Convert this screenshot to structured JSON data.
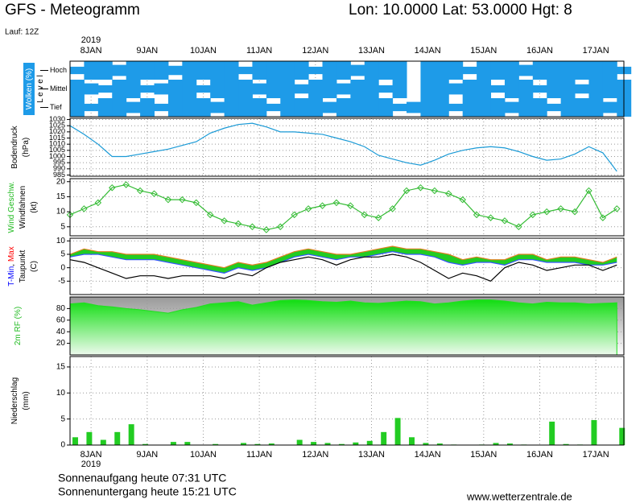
{
  "header": {
    "title": "GFS - Meteogramm",
    "location": "Lon: 10.0000 Lat: 53.0000 Hgt: 8",
    "run": "Lauf: 12Z",
    "year": "2019"
  },
  "footer": {
    "sunrise": "Sonnenaufgang heute 07:31 UTC",
    "sunset": "Sonnenuntergang heute 15:21 UTC",
    "source": "www.wetterzentrale.de"
  },
  "chart_data": {
    "type": "meteogram",
    "x": [
      0,
      6,
      12,
      18,
      24,
      30,
      36,
      42,
      48,
      54,
      60,
      66,
      72,
      78,
      84,
      90,
      96,
      102,
      108,
      114,
      120,
      126,
      132,
      138,
      144,
      150,
      156,
      162,
      168,
      174,
      180,
      186,
      192,
      198,
      204,
      210,
      216,
      222,
      228,
      234
    ],
    "xlim": [
      0,
      237
    ],
    "xticks": [
      {
        "value": 9,
        "label": "8JAN"
      },
      {
        "value": 33,
        "label": "9JAN"
      },
      {
        "value": 57,
        "label": "10JAN"
      },
      {
        "value": 81,
        "label": "11JAN"
      },
      {
        "value": 105,
        "label": "12JAN"
      },
      {
        "value": 129,
        "label": "13JAN"
      },
      {
        "value": 153,
        "label": "14JAN"
      },
      {
        "value": 177,
        "label": "15JAN"
      },
      {
        "value": 201,
        "label": "16JAN"
      },
      {
        "value": 225,
        "label": "17JAN"
      }
    ],
    "grid": true,
    "panels": [
      {
        "type": "band",
        "ylabel": [
          [
            {
              "text": "Wolken (%)",
              "color": "#ffffff"
            }
          ],
          [
            {
              "text": "L e v e l",
              "color": "#000000"
            }
          ]
        ],
        "color": "#1e9be8",
        "series": [
          {
            "name": "Hoch",
            "values": [
              40,
              100,
              100,
              60,
              100,
              100,
              100,
              50,
              100,
              100,
              100,
              100,
              40,
              100,
              100,
              100,
              100,
              40,
              100,
              100,
              60,
              100,
              100,
              100,
              0,
              100,
              100,
              100,
              40,
              100,
              100,
              100,
              60,
              100,
              100,
              100,
              100,
              100,
              100,
              40
            ]
          },
          {
            "name": "Mittel",
            "values": [
              100,
              60,
              40,
              100,
              100,
              40,
              60,
              100,
              100,
              40,
              100,
              100,
              100,
              60,
              100,
              100,
              50,
              100,
              100,
              60,
              100,
              100,
              40,
              100,
              0,
              100,
              100,
              60,
              100,
              100,
              40,
              100,
              100,
              40,
              100,
              100,
              50,
              100,
              100,
              100
            ]
          },
          {
            "name": "Tief",
            "values": [
              100,
              40,
              100,
              100,
              60,
              100,
              40,
              100,
              100,
              100,
              60,
              100,
              100,
              100,
              40,
              100,
              100,
              100,
              60,
              100,
              100,
              100,
              100,
              40,
              60,
              100,
              100,
              40,
              100,
              100,
              100,
              60,
              100,
              100,
              40,
              100,
              100,
              100,
              60,
              100
            ]
          }
        ]
      },
      {
        "type": "line",
        "ylabel": [
          [
            {
              "text": "Bodendruck",
              "color": "#000000"
            }
          ],
          [
            {
              "text": "(hPa)",
              "color": "#000000"
            }
          ]
        ],
        "ylim": [
          984,
          1031
        ],
        "yticks": [
          1030,
          1025,
          1020,
          1015,
          1010,
          1005,
          1000,
          995,
          990,
          985
        ],
        "series": [
          {
            "name": "Bodendruck",
            "color": "#1a9ad6",
            "values": [
              1025,
              1018,
              1010,
              1000,
              1000,
              1002,
              1004,
              1006,
              1009,
              1012,
              1019,
              1023,
              1026,
              1027,
              1024,
              1020,
              1020,
              1019,
              1018,
              1015,
              1012,
              1008,
              1001,
              998,
              995,
              993,
              997,
              1002,
              1005,
              1007,
              1008,
              1007,
              1004,
              1000,
              997,
              998,
              1002,
              1008,
              1003,
              988
            ]
          }
        ]
      },
      {
        "type": "line",
        "markers": true,
        "ylabel": [
          [
            {
              "text": "Wind Geschw.",
              "color": "#22bb22"
            }
          ],
          [
            {
              "text": "Windfahnen",
              "color": "#000000"
            }
          ],
          [
            {
              "text": "(kt)",
              "color": "#000000"
            }
          ]
        ],
        "ylim": [
          2,
          21
        ],
        "yticks": [
          20,
          15,
          10,
          5
        ],
        "series": [
          {
            "name": "Wind Geschw.",
            "color": "#33bb33",
            "values": [
              9,
              11,
              13,
              18,
              19,
              17,
              16,
              14,
              14,
              13,
              9,
              7,
              6,
              5,
              4,
              5,
              9,
              11,
              12,
              13,
              12,
              9,
              8,
              11,
              17,
              18,
              17,
              16,
              14,
              9,
              8,
              7,
              5,
              9,
              10,
              11,
              10,
              17,
              8,
              11
            ]
          }
        ]
      },
      {
        "type": "line",
        "fill_between": [
          1,
          0
        ],
        "fill_color": "#22cc22",
        "ylabel": [
          [
            {
              "text": "T-Min",
              "color": "#0000ff"
            },
            {
              "text": ", ",
              "color": "#000000"
            },
            {
              "text": "Max",
              "color": "#ff0000"
            }
          ],
          [
            {
              "text": "Taupunkt",
              "color": "#000000"
            }
          ],
          [
            {
              "text": "(C)",
              "color": "#000000"
            }
          ]
        ],
        "ylim": [
          -10,
          11
        ],
        "yticks": [
          10,
          5,
          0,
          -5
        ],
        "series": [
          {
            "name": "T-Max",
            "color": "#e08020",
            "values": [
              5,
              7,
              6,
              6,
              5,
              5,
              5,
              4,
              3,
              2,
              1,
              0,
              2,
              1,
              2,
              4,
              6,
              7,
              6,
              5,
              5,
              6,
              7,
              8,
              7,
              7,
              6,
              5,
              3,
              4,
              3,
              3,
              5,
              5,
              3,
              4,
              4,
              3,
              2,
              4
            ]
          },
          {
            "name": "T-Min",
            "color": "#3355ff",
            "values": [
              4,
              5,
              5,
              4,
              3,
              3,
              3,
              2,
              1,
              0,
              -1,
              -2,
              0,
              -1,
              0,
              2,
              4,
              5,
              4,
              3,
              4,
              4,
              5,
              6,
              5,
              5,
              4,
              2,
              1,
              2,
              2,
              1,
              3,
              3,
              2,
              2,
              2,
              1,
              1,
              2
            ]
          },
          {
            "name": "Taupunkt",
            "color": "#000000",
            "values": [
              3,
              2,
              0,
              -2,
              -4,
              -3,
              -3,
              -4,
              -3,
              -3,
              -3,
              -4,
              -2,
              -3,
              0,
              2,
              3,
              4,
              3,
              1,
              3,
              4,
              4,
              5,
              4,
              2,
              -1,
              -4,
              -2,
              -3,
              -5,
              0,
              2,
              1,
              -1,
              0,
              1,
              1,
              -1,
              1
            ]
          }
        ]
      },
      {
        "type": "area",
        "ylabel": [
          [
            {
              "text": "2m RF (%)",
              "color": "#22bb22"
            }
          ]
        ],
        "ylim": [
          0,
          100
        ],
        "yticks": [
          80,
          60,
          40,
          20
        ],
        "series": [
          {
            "name": "2m RF",
            "color": "#22dd22",
            "values": [
              88,
              90,
              85,
              83,
              80,
              78,
              75,
              72,
              78,
              82,
              88,
              90,
              92,
              86,
              90,
              94,
              95,
              94,
              92,
              91,
              93,
              90,
              89,
              91,
              93,
              92,
              88,
              90,
              93,
              95,
              95,
              93,
              90,
              88,
              91,
              90,
              90,
              88,
              89,
              90
            ]
          }
        ]
      },
      {
        "type": "bar",
        "ylabel": [
          [
            {
              "text": "Niederschlag",
              "color": "#000000"
            }
          ],
          [
            {
              "text": "(mm)",
              "color": "#000000"
            }
          ]
        ],
        "ylim": [
          0,
          17
        ],
        "yticks": [
          15,
          10,
          5,
          0
        ],
        "series": [
          {
            "name": "Niederschlag",
            "color": "#22cc22",
            "values": [
              1.5,
              2.5,
              1.0,
              2.5,
              4,
              0.2,
              0,
              0.6,
              0.6,
              0,
              0.2,
              0,
              0.4,
              0.2,
              0.3,
              0,
              1.0,
              0.6,
              0.4,
              0.2,
              0.5,
              0.8,
              2.5,
              5.2,
              1.5,
              0.4,
              0.3,
              0.1,
              0,
              0.1,
              0.4,
              0.3,
              0.1,
              0,
              4.5,
              0.2,
              0.1,
              4.8,
              0,
              3.3
            ]
          }
        ]
      }
    ]
  }
}
